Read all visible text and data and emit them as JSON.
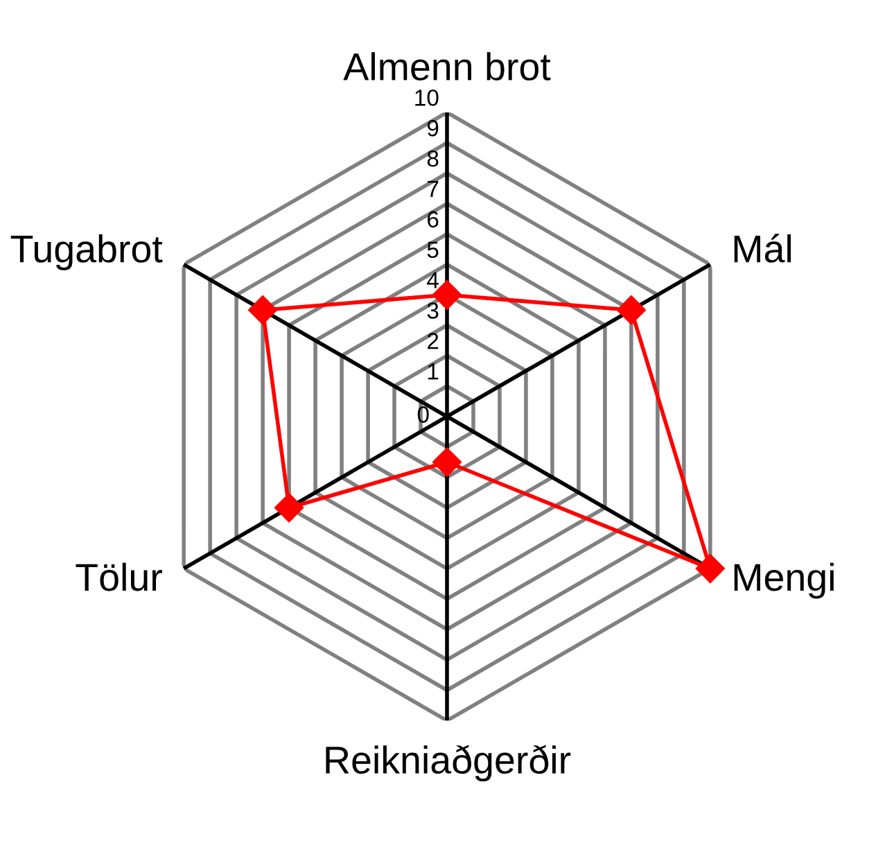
{
  "chart_data": {
    "type": "radar",
    "categories": [
      "Almenn brot",
      "Mál",
      "Mengi",
      "Reikniaðgerðir",
      "Tölur",
      "Tugabrot"
    ],
    "series": [
      {
        "color": "#ff0000",
        "values": [
          4,
          7,
          10,
          1.5,
          6,
          7
        ]
      }
    ],
    "ylim": [
      0,
      10
    ],
    "yticks": [
      0,
      1,
      2,
      3,
      4,
      5,
      6,
      7,
      8,
      9,
      10
    ],
    "grid": true,
    "marker": "diamond",
    "line_style": "solid"
  }
}
